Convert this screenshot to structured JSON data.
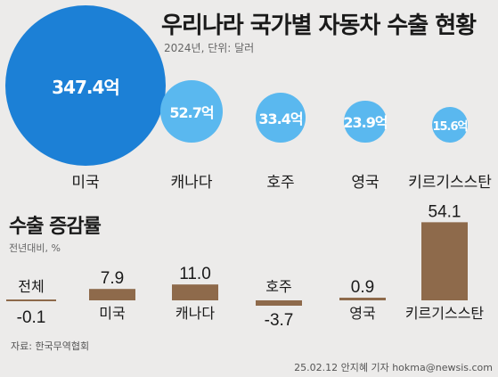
{
  "header": {
    "title": "우리나라 국가별 자동차 수출 현황",
    "subtitle": "2024년, 단위: 달러"
  },
  "growth": {
    "title": "수출 증감률",
    "unit": "전년대비, %"
  },
  "footer": {
    "source": "자료: 한국무역협회",
    "credit": "25.02.12 안지혜 기자 hokma@newsis.com"
  },
  "colors": {
    "bubble_large": "#1c80d6",
    "bubble_small": "#5ab8ef",
    "bar": "#8e6a4b",
    "baseline": "#8e6a4b"
  },
  "chart_data": [
    {
      "type": "scatter",
      "title": "우리나라 국가별 자동차 수출 현황",
      "subtitle": "2024년, 단위: 달러",
      "categories": [
        "미국",
        "캐나다",
        "호주",
        "영국",
        "키르기스스탄"
      ],
      "values": [
        347.4,
        52.7,
        33.4,
        23.9,
        15.6
      ],
      "value_labels": [
        "347.4억",
        "52.7억",
        "33.4억",
        "23.9억",
        "15.6억"
      ]
    },
    {
      "type": "bar",
      "title": "수출 증감률",
      "subtitle": "전년대비, %",
      "categories": [
        "전체",
        "미국",
        "캐나다",
        "호주",
        "영국",
        "키르기스스탄"
      ],
      "values": [
        -0.1,
        7.9,
        11.0,
        -3.7,
        0.9,
        54.1
      ],
      "value_labels": [
        "-0.1",
        "7.9",
        "11.0",
        "-3.7",
        "0.9",
        "54.1"
      ]
    }
  ]
}
